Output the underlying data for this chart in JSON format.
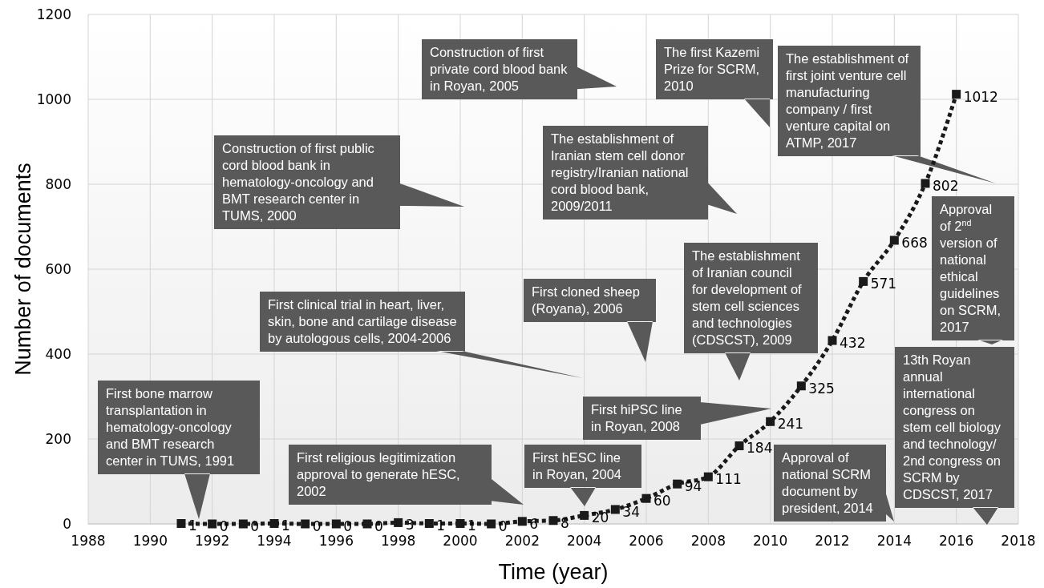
{
  "chart_data": {
    "type": "line",
    "xlabel": "Time (year)",
    "ylabel": "Number of documents",
    "x": [
      1991,
      1992,
      1993,
      1994,
      1995,
      1996,
      1997,
      1998,
      1999,
      2000,
      2001,
      2002,
      2003,
      2004,
      2005,
      2006,
      2007,
      2008,
      2009,
      2010,
      2011,
      2012,
      2013,
      2014,
      2015,
      2016
    ],
    "series": [
      {
        "color": "#1a1a1a",
        "values": [
          1,
          0,
          0,
          1,
          0,
          0,
          0,
          3,
          1,
          1,
          0,
          6,
          8,
          20,
          34,
          60,
          94,
          111,
          184,
          241,
          325,
          432,
          571,
          668,
          802,
          1012
        ]
      }
    ],
    "xlim": [
      1988,
      2018
    ],
    "xticks": [
      1988,
      1990,
      1992,
      1994,
      1996,
      1998,
      2000,
      2002,
      2004,
      2006,
      2008,
      2010,
      2012,
      2014,
      2016,
      2018
    ],
    "ylim": [
      0,
      1200
    ],
    "yticks": [
      0,
      200,
      400,
      600,
      800,
      1000,
      1200
    ],
    "grid": true,
    "marker": "square",
    "line_style": "dotted",
    "data_labels": true,
    "annotations": [
      "First bone marrow transplantation in hematology-oncology and BMT research center in TUMS, 1991",
      "First religious legitimization approval to generate hESC, 2002",
      "First clinical trial in heart, liver, skin, bone and cartilage disease by autologous cells, 2004-2006",
      "Construction of first public cord blood bank in hematology-oncology and BMT research center in TUMS, 2000",
      "Construction of first private cord blood bank in Royan, 2005",
      "First cloned sheep (Royana), 2006",
      "First hESC line in Royan, 2004",
      "First hiPSC line in Royan, 2008",
      "The first Kazemi Prize for SCRM, 2010",
      "The establishment of Iranian stem cell donor registry/Iranian national cord blood bank, 2009/2011",
      "The establishment of Iranian council for development of stem cell sciences and technologies (CDSCST), 2009",
      "The establishment of first joint venture cell manufacturing company / first venture capital on ATMP, 2017",
      "Approval of 2$^{nd}$ version of national ethical guidelines on SCRM, 2017",
      "13th Royan annual international congress on stem cell biology and technology/ 2nd congress on SCRM by CDSCST, 2017",
      "Approval of national SCRM document by president, 2014"
    ]
  }
}
